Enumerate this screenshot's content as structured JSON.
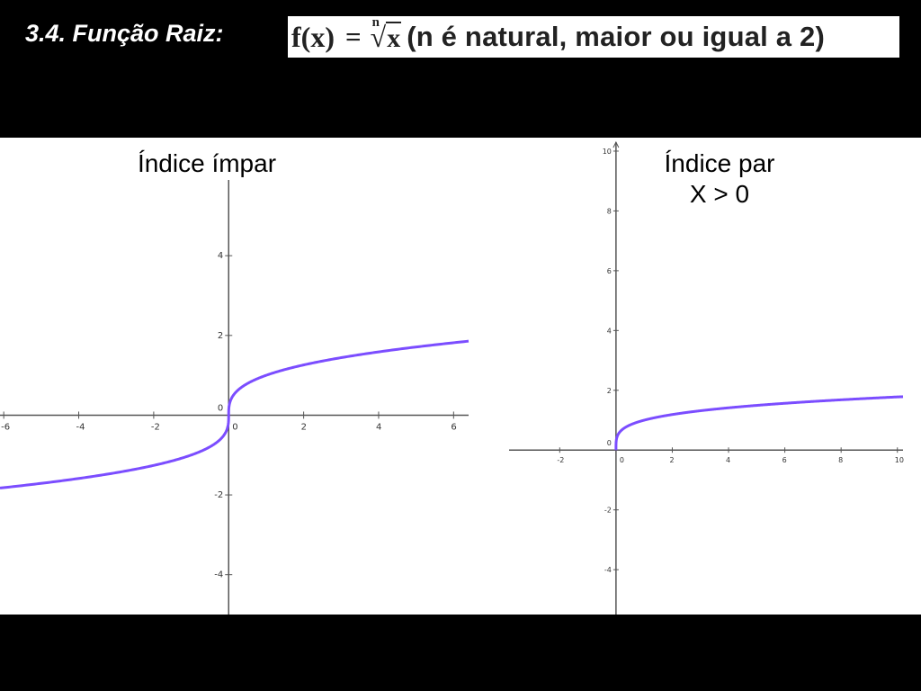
{
  "slide": {
    "title": "3.4. Função Raiz:",
    "formula": {
      "lhs": "f(x)",
      "equals": "=",
      "radical_index": "n",
      "radicand": "x",
      "condition": "(n é natural, maior ou igual a 2)"
    }
  },
  "colors": {
    "background": "#000000",
    "plot_background": "#ffffff",
    "curve": "#7B4DFF",
    "axis": "#555555"
  },
  "chart_data": [
    {
      "type": "line",
      "title": "Índice ímpar",
      "subtitle": "",
      "xlabel": "",
      "ylabel": "",
      "xlim": [
        -6.1,
        6.4
      ],
      "ylim": [
        -5,
        5.9
      ],
      "x_ticks": [
        -6,
        -4,
        -2,
        0,
        2,
        4,
        6
      ],
      "y_ticks": [
        -4,
        -2,
        0,
        2,
        4
      ],
      "x_tick_labels": [
        "-6",
        "-4",
        "-2",
        "0",
        "2",
        "4",
        "6"
      ],
      "y_tick_labels": [
        "-4",
        "-2",
        "0",
        "2",
        "4"
      ],
      "grid": false,
      "series": [
        {
          "function": "cbrt",
          "x": [
            -6.1,
            -5,
            -4,
            -3,
            -2,
            -1,
            -0.5,
            -0.1,
            -0.01,
            0,
            0.01,
            0.1,
            0.5,
            1,
            2,
            3,
            4,
            5,
            6.4
          ],
          "y": [
            -1.83,
            -1.71,
            -1.59,
            -1.44,
            -1.26,
            -1.0,
            -0.79,
            -0.46,
            -0.22,
            0,
            0.22,
            0.46,
            0.79,
            1.0,
            1.26,
            1.44,
            1.59,
            1.71,
            1.86
          ]
        }
      ]
    },
    {
      "type": "line",
      "title": "Índice par",
      "subtitle": "X > 0",
      "xlabel": "",
      "ylabel": "",
      "xlim": [
        -3.8,
        10.2
      ],
      "ylim": [
        -5.5,
        10.3
      ],
      "x_ticks": [
        -2,
        0,
        2,
        4,
        6,
        8,
        10
      ],
      "y_ticks": [
        -4,
        -2,
        0,
        2,
        4,
        6,
        8,
        10
      ],
      "x_tick_labels": [
        "-2",
        "0",
        "2",
        "4",
        "6",
        "8",
        "10"
      ],
      "y_tick_labels": [
        "-4",
        "-2",
        "0",
        "2",
        "4",
        "6",
        "8",
        "10"
      ],
      "grid": false,
      "series": [
        {
          "function": "root4",
          "x": [
            0,
            0.01,
            0.1,
            0.5,
            1,
            2,
            3,
            4,
            6,
            8,
            10.2
          ],
          "y": [
            0,
            0.32,
            0.56,
            0.84,
            1.0,
            1.19,
            1.32,
            1.41,
            1.57,
            1.68,
            1.79
          ]
        }
      ]
    }
  ]
}
